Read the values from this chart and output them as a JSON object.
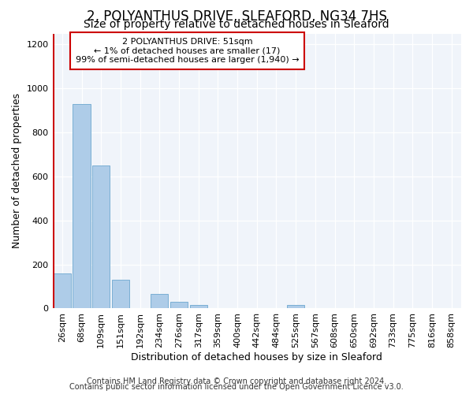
{
  "title1": "2, POLYANTHUS DRIVE, SLEAFORD, NG34 7HS",
  "title2": "Size of property relative to detached houses in Sleaford",
  "xlabel": "Distribution of detached houses by size in Sleaford",
  "ylabel": "Number of detached properties",
  "footer1": "Contains HM Land Registry data © Crown copyright and database right 2024.",
  "footer2": "Contains public sector information licensed under the Open Government Licence v3.0.",
  "annotation_line1": "2 POLYANTHUS DRIVE: 51sqm",
  "annotation_line2": "← 1% of detached houses are smaller (17)",
  "annotation_line3": "99% of semi-detached houses are larger (1,940) →",
  "bar_labels": [
    "26sqm",
    "68sqm",
    "109sqm",
    "151sqm",
    "192sqm",
    "234sqm",
    "276sqm",
    "317sqm",
    "359sqm",
    "400sqm",
    "442sqm",
    "484sqm",
    "525sqm",
    "567sqm",
    "608sqm",
    "650sqm",
    "692sqm",
    "733sqm",
    "775sqm",
    "816sqm",
    "858sqm"
  ],
  "bar_values": [
    160,
    930,
    650,
    130,
    0,
    65,
    30,
    15,
    0,
    0,
    0,
    0,
    15,
    0,
    0,
    0,
    0,
    0,
    0,
    0,
    0
  ],
  "bar_color": "#aecce8",
  "bar_edge_color": "#7aafd4",
  "marker_color": "#cc0000",
  "ylim": [
    0,
    1250
  ],
  "yticks": [
    0,
    200,
    400,
    600,
    800,
    1000,
    1200
  ],
  "background_color": "#ffffff",
  "plot_bg_color": "#f0f4fa",
  "grid_color": "#ffffff",
  "annotation_box_color": "#ffffff",
  "annotation_box_edge": "#cc0000",
  "title1_fontsize": 12,
  "title2_fontsize": 10,
  "xlabel_fontsize": 9,
  "ylabel_fontsize": 9,
  "tick_fontsize": 8,
  "footer_fontsize": 7
}
